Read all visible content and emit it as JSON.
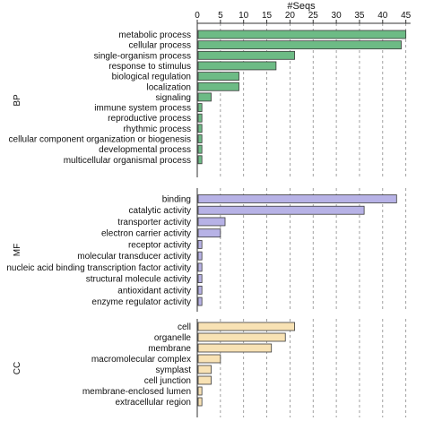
{
  "chart_data": {
    "type": "bar",
    "orientation": "horizontal",
    "xlabel": "#Seqs",
    "xlim": [
      0,
      46
    ],
    "ticks": [
      0,
      5,
      10,
      15,
      20,
      25,
      30,
      35,
      40,
      45
    ],
    "grid": "vertical dashed",
    "groups": [
      {
        "name": "BP",
        "color": "#6dbb85",
        "categories": [
          "metabolic process",
          "cellular process",
          "single-organism process",
          "response to stimulus",
          "biological regulation",
          "localization",
          "signaling",
          "immune system process",
          "reproductive process",
          "rhythmic process",
          "cellular component organization or biogenesis",
          "developmental process",
          "multicellular organismal process"
        ],
        "values": [
          45,
          44,
          21,
          17,
          9,
          9,
          3,
          1,
          1,
          1,
          1,
          1,
          1
        ]
      },
      {
        "name": "MF",
        "color": "#b7b2e6",
        "categories": [
          "binding",
          "catalytic activity",
          "transporter activity",
          "electron carrier activity",
          "receptor activity",
          "molecular transducer activity",
          "nucleic acid binding transcription factor activity",
          "structural molecule activity",
          "antioxidant activity",
          "enzyme regulator activity"
        ],
        "values": [
          43,
          36,
          6,
          5,
          1,
          1,
          1,
          1,
          1,
          1
        ]
      },
      {
        "name": "CC",
        "color": "#f8e2b4",
        "categories": [
          "cell",
          "organelle",
          "membrane",
          "macromolecular complex",
          "symplast",
          "cell junction",
          "membrane-enclosed lumen",
          "extracellular region"
        ],
        "values": [
          21,
          19,
          16,
          5,
          3,
          3,
          1,
          1
        ]
      }
    ]
  }
}
